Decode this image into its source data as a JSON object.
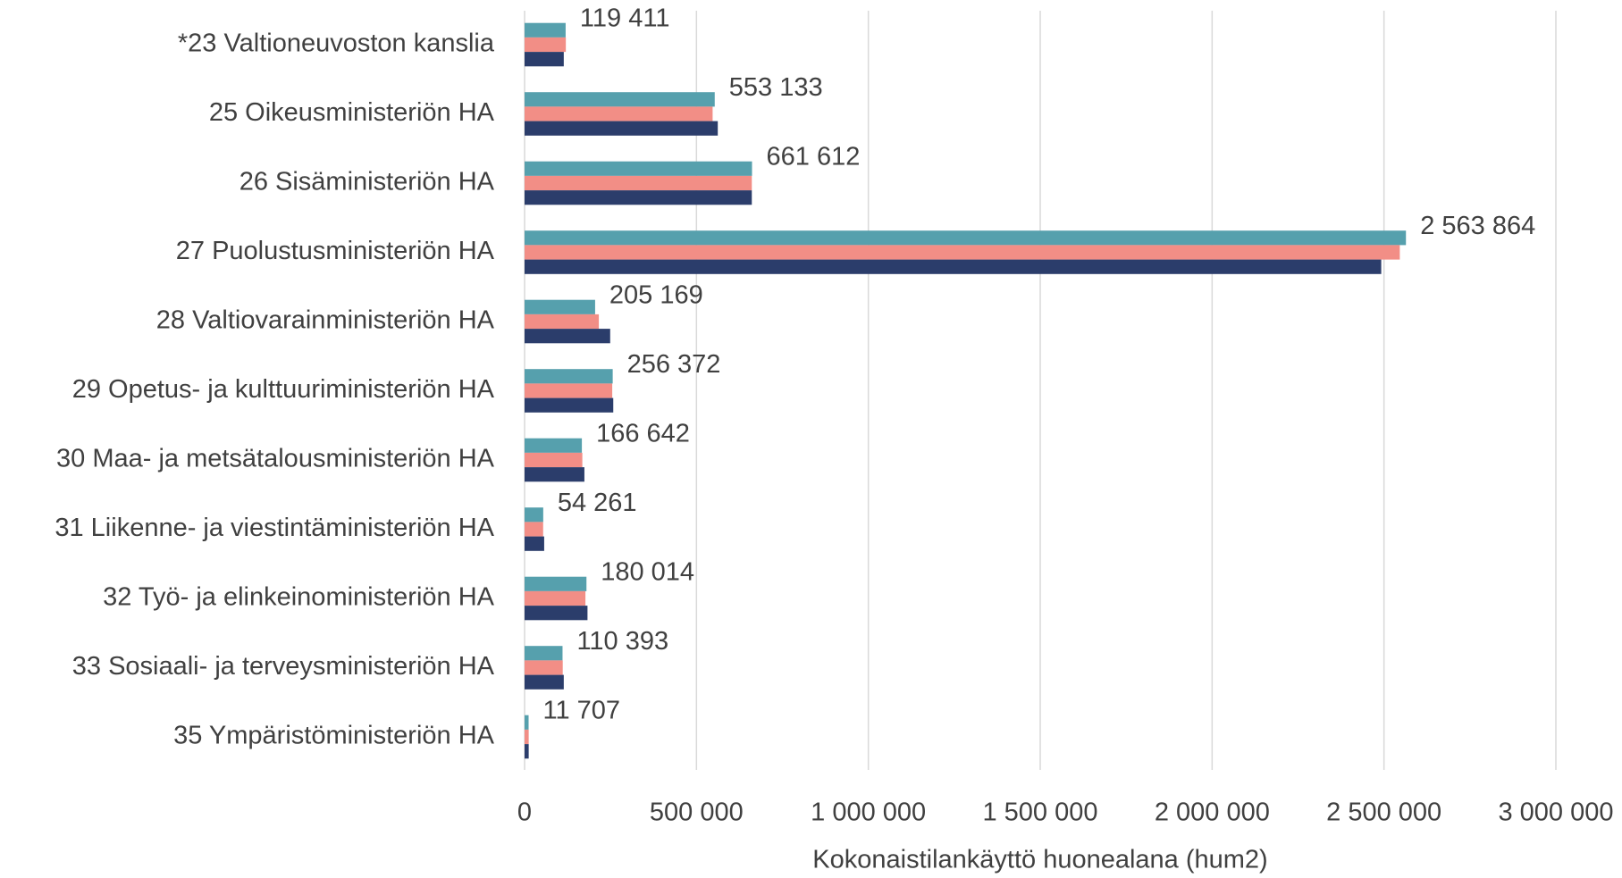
{
  "chart_data": {
    "type": "bar",
    "orientation": "horizontal",
    "x_label": "Kokonaistilankäyttö huonealana (hum2)",
    "categories": [
      "*23 Valtioneuvoston kanslia",
      "25 Oikeusministeriön HA",
      "26 Sisäministeriön HA",
      "27 Puolustusministeriön HA",
      "28 Valtiovarainministeriön HA",
      "29 Opetus- ja kulttuuriministeriön HA",
      "30 Maa- ja metsätalousministeriön HA",
      "31 Liikenne- ja viestintäministeriön HA",
      "32 Työ- ja elinkeinoministeriön HA",
      "33 Sosiaali- ja terveysministeriön HA",
      "35 Ympäristöministeriön HA"
    ],
    "series": [
      {
        "color": "#56a0ad",
        "values": [
          119411,
          553133,
          661612,
          2563864,
          205169,
          256372,
          166642,
          54261,
          180014,
          110393,
          11707
        ],
        "value_labels": [
          "119 411",
          "553 133",
          "661 612",
          "2 563 864",
          "205 169",
          "256 372",
          "166 642",
          "54 261",
          "180 014",
          "110 393",
          "11 707"
        ]
      },
      {
        "color": "#f28e86",
        "values": [
          120000,
          547000,
          661000,
          2546000,
          216000,
          255000,
          168000,
          54000,
          177000,
          111000,
          12000
        ]
      },
      {
        "color": "#2b3d6b",
        "values": [
          114000,
          562000,
          661000,
          2492000,
          249000,
          258000,
          174000,
          57000,
          183000,
          114000,
          12000
        ]
      }
    ],
    "xlim": [
      0,
      3000000
    ],
    "xticks": [
      0,
      {
        "value": 500000,
        "label": "500 000"
      },
      {
        "value": 1000000,
        "label": "1 000 000"
      },
      {
        "value": 1500000,
        "label": "1 500 000"
      },
      {
        "value": 2000000,
        "label": "2 000 000"
      },
      {
        "value": 2500000,
        "label": "2 500 000"
      },
      {
        "value": 3000000,
        "label": "3 000 000"
      }
    ],
    "grid": true
  }
}
